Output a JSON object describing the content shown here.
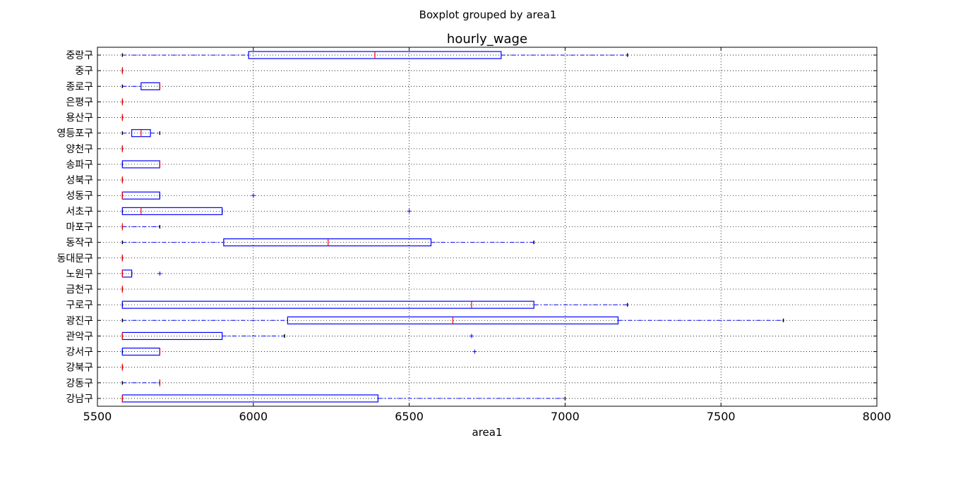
{
  "chart_data": {
    "type": "boxplot",
    "suptitle": "Boxplot grouped by area1",
    "title": "hourly_wage",
    "xlabel": "area1",
    "ylabel": "",
    "xlim": [
      5500,
      8000
    ],
    "xticks": [
      5500,
      6000,
      6500,
      7000,
      7500,
      8000
    ],
    "grid": true,
    "orientation": "horizontal",
    "colors": {
      "box": "#0000ff",
      "median": "#ff0000",
      "grid": "#000000",
      "cap": "#000000"
    },
    "categories": [
      "강남구",
      "강동구",
      "강북구",
      "강서구",
      "관악구",
      "광진구",
      "구로구",
      "금천구",
      "노원구",
      "동대문구",
      "동작구",
      "마포구",
      "서초구",
      "성동구",
      "성북구",
      "송파구",
      "양천구",
      "영등포구",
      "용산구",
      "은평구",
      "종로구",
      "중구",
      "중랑구"
    ],
    "boxes": [
      {
        "category": "강남구",
        "whislo": 5580,
        "q1": 5580,
        "med": 5580,
        "q3": 6400,
        "whishi": 7000,
        "fliers": []
      },
      {
        "category": "강동구",
        "whislo": 5580,
        "q1": 5700,
        "med": 5700,
        "q3": 5700,
        "whishi": 5700,
        "fliers": []
      },
      {
        "category": "강북구",
        "whislo": 5580,
        "q1": 5580,
        "med": 5580,
        "q3": 5580,
        "whishi": 5580,
        "fliers": []
      },
      {
        "category": "강서구",
        "whislo": 5580,
        "q1": 5580,
        "med": 5700,
        "q3": 5700,
        "whishi": 5700,
        "fliers": [
          6710
        ]
      },
      {
        "category": "관악구",
        "whislo": 5580,
        "q1": 5580,
        "med": 5580,
        "q3": 5900,
        "whishi": 6100,
        "fliers": [
          6700
        ]
      },
      {
        "category": "광진구",
        "whislo": 5580,
        "q1": 6110,
        "med": 6640,
        "q3": 7170,
        "whishi": 7700,
        "fliers": []
      },
      {
        "category": "구로구",
        "whislo": 5580,
        "q1": 5580,
        "med": 6700,
        "q3": 6900,
        "whishi": 7200,
        "fliers": []
      },
      {
        "category": "금천구",
        "whislo": 5580,
        "q1": 5580,
        "med": 5580,
        "q3": 5580,
        "whishi": 5580,
        "fliers": []
      },
      {
        "category": "노원구",
        "whislo": 5580,
        "q1": 5580,
        "med": 5580,
        "q3": 5610,
        "whishi": 5610,
        "fliers": [
          5700
        ]
      },
      {
        "category": "동대문구",
        "whislo": 5580,
        "q1": 5580,
        "med": 5580,
        "q3": 5580,
        "whishi": 5580,
        "fliers": []
      },
      {
        "category": "동작구",
        "whislo": 5580,
        "q1": 5905,
        "med": 6240,
        "q3": 6570,
        "whishi": 6900,
        "fliers": []
      },
      {
        "category": "마포구",
        "whislo": 5580,
        "q1": 5580,
        "med": 5580,
        "q3": 5580,
        "whishi": 5700,
        "fliers": []
      },
      {
        "category": "서초구",
        "whislo": 5580,
        "q1": 5580,
        "med": 5640,
        "q3": 5900,
        "whishi": 5900,
        "fliers": [
          6500
        ]
      },
      {
        "category": "성동구",
        "whislo": 5580,
        "q1": 5580,
        "med": 5580,
        "q3": 5700,
        "whishi": 5700,
        "fliers": [
          6000
        ]
      },
      {
        "category": "성북구",
        "whislo": 5580,
        "q1": 5580,
        "med": 5580,
        "q3": 5580,
        "whishi": 5580,
        "fliers": []
      },
      {
        "category": "송파구",
        "whislo": 5580,
        "q1": 5580,
        "med": 5700,
        "q3": 5700,
        "whishi": 5700,
        "fliers": []
      },
      {
        "category": "양천구",
        "whislo": 5580,
        "q1": 5580,
        "med": 5580,
        "q3": 5580,
        "whishi": 5580,
        "fliers": []
      },
      {
        "category": "영등포구",
        "whislo": 5580,
        "q1": 5610,
        "med": 5640,
        "q3": 5670,
        "whishi": 5700,
        "fliers": []
      },
      {
        "category": "용산구",
        "whislo": 5580,
        "q1": 5580,
        "med": 5580,
        "q3": 5580,
        "whishi": 5580,
        "fliers": []
      },
      {
        "category": "은평구",
        "whislo": 5580,
        "q1": 5580,
        "med": 5580,
        "q3": 5580,
        "whishi": 5580,
        "fliers": []
      },
      {
        "category": "종로구",
        "whislo": 5580,
        "q1": 5640,
        "med": 5700,
        "q3": 5700,
        "whishi": 5700,
        "fliers": []
      },
      {
        "category": "중구",
        "whislo": 5580,
        "q1": 5580,
        "med": 5580,
        "q3": 5580,
        "whishi": 5580,
        "fliers": []
      },
      {
        "category": "중랑구",
        "whislo": 5580,
        "q1": 5985,
        "med": 6390,
        "q3": 6795,
        "whishi": 7200,
        "fliers": []
      }
    ]
  }
}
